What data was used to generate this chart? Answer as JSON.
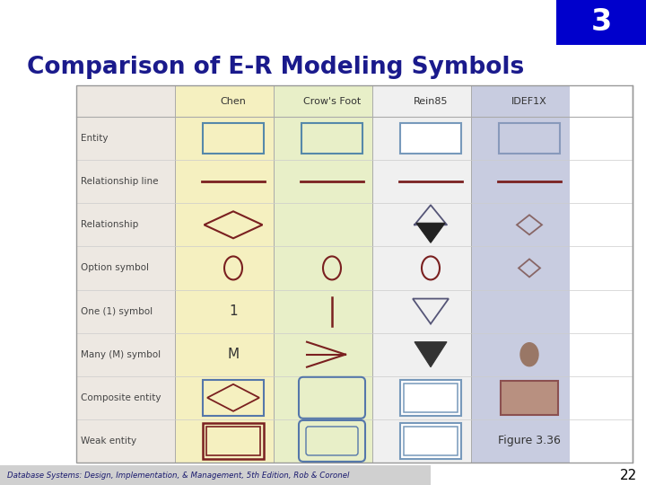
{
  "title": "Comparison of E-R Modeling Symbols",
  "title_color": "#1a1a8c",
  "title_fontsize": 19,
  "corner_number": "3",
  "corner_bg": "#0000cc",
  "footer_text": "Database Systems: Design, Implementation, & Management, 5th Edition, Rob & Coronel",
  "figure_label": "Figure 3.36",
  "page_number": "22",
  "bg_color": "#ffffff",
  "col_headers": [
    "Chen",
    "Crow's Foot",
    "Rein85",
    "IDEF1X"
  ],
  "col_colors": [
    "#f5f0c0",
    "#e8efc8",
    "#f0f0f0",
    "#c8cce0"
  ],
  "label_col_bg": "#ede8e2",
  "row_labels": [
    "Entity",
    "Relationship line",
    "Relationship",
    "Option symbol",
    "One (1) symbol",
    "Many (M) symbol",
    "Composite entity",
    "Weak entity"
  ],
  "dark_red": "#7a2020",
  "line_color": "#7a2020",
  "symbol_color": "#7a2020",
  "rein_color": "#555577",
  "idef_color": "#8888aa"
}
